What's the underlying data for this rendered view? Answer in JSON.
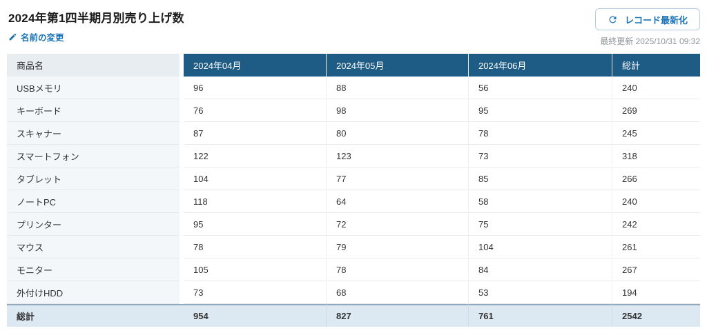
{
  "header": {
    "title": "2024年第1四半期月別売り上げ数",
    "rename_label": "名前の変更",
    "refresh_button_label": "レコード最新化",
    "last_updated": "最終更新 2025/10/31 09:32"
  },
  "colors": {
    "header_cell_bg": "#1e5c85",
    "accent_blue": "#1a73b8",
    "label_header_bg": "#e8edf2",
    "label_cell_bg": "#f4f7fa",
    "footer_bg": "#dde9f2",
    "footer_top_border": "#90a9bd"
  },
  "table": {
    "columns": [
      "商品名",
      "2024年04月",
      "2024年05月",
      "2024年06月",
      "総計"
    ],
    "rows": [
      {
        "label": "USBメモリ",
        "values": [
          96,
          88,
          56,
          240
        ]
      },
      {
        "label": "キーボード",
        "values": [
          76,
          98,
          95,
          269
        ]
      },
      {
        "label": "スキャナー",
        "values": [
          87,
          80,
          78,
          245
        ]
      },
      {
        "label": "スマートフォン",
        "values": [
          122,
          123,
          73,
          318
        ]
      },
      {
        "label": "タブレット",
        "values": [
          104,
          77,
          85,
          266
        ]
      },
      {
        "label": "ノートPC",
        "values": [
          118,
          64,
          58,
          240
        ]
      },
      {
        "label": "プリンター",
        "values": [
          95,
          72,
          75,
          242
        ]
      },
      {
        "label": "マウス",
        "values": [
          78,
          79,
          104,
          261
        ]
      },
      {
        "label": "モニター",
        "values": [
          105,
          78,
          84,
          267
        ]
      },
      {
        "label": "外付けHDD",
        "values": [
          73,
          68,
          53,
          194
        ]
      }
    ],
    "footer": {
      "label": "総計",
      "values": [
        954,
        827,
        761,
        2542
      ]
    }
  }
}
